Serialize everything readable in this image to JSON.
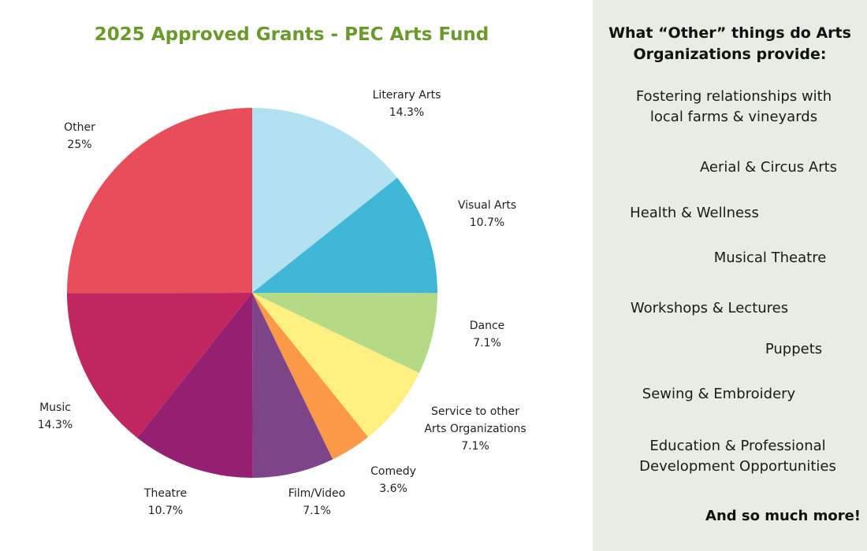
{
  "chart_data": {
    "type": "pie",
    "title": "2025 Approved Grants - PEC Arts Fund",
    "slices": [
      {
        "label": "Literary Arts",
        "value_label": "14.3%",
        "value": 14.3,
        "color": "#b2e1f1"
      },
      {
        "label": "Visual Arts",
        "value_label": "10.7%",
        "value": 10.7,
        "color": "#41b7d6"
      },
      {
        "label": "Dance",
        "value_label": "7.1%",
        "value": 7.1,
        "color": "#b4da88"
      },
      {
        "label": "Service to other\nArts Organizations",
        "value_label": "7.1%",
        "value": 7.1,
        "color": "#fdf081"
      },
      {
        "label": "Comedy",
        "value_label": "3.6%",
        "value": 3.6,
        "color": "#fa9a48"
      },
      {
        "label": "Film/Video",
        "value_label": "7.1%",
        "value": 7.1,
        "color": "#7e4489"
      },
      {
        "label": "Theatre",
        "value_label": "10.7%",
        "value": 10.7,
        "color": "#951f70"
      },
      {
        "label": "Music",
        "value_label": "14.3%",
        "value": 14.3,
        "color": "#c02660"
      },
      {
        "label": "Other",
        "value_label": "25%",
        "value": 25,
        "color": "#e84d59"
      }
    ]
  },
  "side_panel": {
    "heading_line1": "What “Other” things do Arts",
    "heading_line2": "Organizations provide:",
    "items": [
      {
        "line1": "Fostering relationships with",
        "line2": "local farms & vineyards"
      },
      {
        "line1": "Aerial & Circus Arts"
      },
      {
        "line1": "Health & Wellness"
      },
      {
        "line1": "Musical Theatre"
      },
      {
        "line1": "Workshops & Lectures"
      },
      {
        "line1": "Puppets"
      },
      {
        "line1": "Sewing & Embroidery"
      },
      {
        "line1": "Education & Professional",
        "line2": "Development Opportunities"
      }
    ],
    "footer": "And so much more!"
  }
}
